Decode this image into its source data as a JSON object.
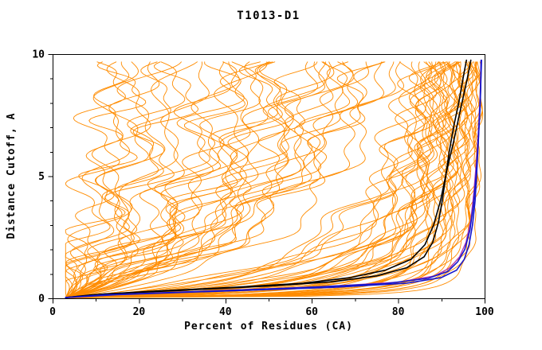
{
  "figure": {
    "title": "T1013-D1"
  },
  "chart_data": {
    "type": "line",
    "title": "T1013-D1",
    "xlabel": "Percent of Residues (CA)",
    "ylabel": "Distance Cutoff, A",
    "xlim": [
      0,
      100
    ],
    "ylim": [
      0,
      10
    ],
    "x_major_ticks": [
      0,
      20,
      40,
      60,
      80,
      100
    ],
    "x_minor_step": 10,
    "y_major_ticks": [
      0,
      5,
      10
    ],
    "y_minor_step": 1,
    "grid": false,
    "frame": true,
    "legend": "none",
    "colors": {
      "background_series": "#ff8c00",
      "highlight_black": "#000000",
      "highlight_blue": "#1616cd",
      "highlight_magenta": "#b43cb4",
      "axis": "#000000"
    },
    "curve_model": "x(y) = 3 + (F-3) * (y/(y+c)) * ((10+c)/10) + wiggle(amp,phase,freq); params = [F,c,amp,phase,freq]",
    "param_format": [
      "final_percent_at_cutoff10",
      "shape_c",
      "wiggle_amp",
      "wiggle_phase",
      "wiggle_freq"
    ],
    "y_sample_range": [
      0.08,
      9.76
    ],
    "series_groups": [
      {
        "name": "server-models-orange",
        "color": "#ff8c00",
        "width": 0.9,
        "params": [
          [
            13,
            9,
            3,
            0.5,
            1.1
          ],
          [
            16,
            7,
            2.5,
            2.1,
            0.9
          ],
          [
            18,
            11,
            3.2,
            4.0,
            1.3
          ],
          [
            21,
            6,
            2.8,
            1.2,
            1.0
          ],
          [
            24,
            8,
            3.5,
            3.3,
            0.8
          ],
          [
            26,
            5,
            2.2,
            0.2,
            1.2
          ],
          [
            28,
            10,
            3.0,
            2.6,
            1.0
          ],
          [
            30,
            7,
            2.6,
            5.1,
            0.7
          ],
          [
            32,
            12,
            3.4,
            1.8,
            1.1
          ],
          [
            34,
            6,
            2.4,
            3.9,
            0.9
          ],
          [
            15,
            8,
            2.0,
            2.9,
            1.2
          ],
          [
            20,
            9,
            3.1,
            0.8,
            0.85
          ],
          [
            38,
            5,
            3,
            1.5,
            1.0
          ],
          [
            40,
            3.5,
            2.5,
            2.8,
            0.9
          ],
          [
            43,
            6,
            3.2,
            0.4,
            1.15
          ],
          [
            45,
            2.5,
            2.8,
            3.6,
            0.8
          ],
          [
            47,
            7,
            3.0,
            1.9,
            1.05
          ],
          [
            50,
            4,
            2.2,
            5.0,
            0.95
          ],
          [
            52,
            6.5,
            3.3,
            2.2,
            1.1
          ],
          [
            54,
            3,
            2.6,
            0.9,
            0.85
          ],
          [
            56,
            5.5,
            3.1,
            4.2,
            1.0
          ],
          [
            58,
            2.2,
            2.4,
            1.4,
            1.2
          ],
          [
            60,
            4.5,
            3.0,
            3.0,
            0.9
          ],
          [
            62,
            6,
            2.7,
            0.6,
            1.05
          ],
          [
            64,
            3.2,
            2.3,
            2.4,
            1.0
          ],
          [
            66,
            5,
            3.2,
            4.6,
            0.8
          ],
          [
            68,
            2.8,
            2.5,
            1.1,
            1.1
          ],
          [
            70,
            4.2,
            2.9,
            3.8,
            0.95
          ],
          [
            72,
            6.2,
            2.1,
            0.3,
            1.0
          ],
          [
            74,
            3.6,
            2.7,
            2.0,
            1.15
          ],
          [
            76,
            5.8,
            3.0,
            4.9,
            0.85
          ],
          [
            78,
            2.4,
            2.2,
            1.6,
            1.0
          ],
          [
            80,
            4.8,
            2.8,
            3.4,
            0.9
          ],
          [
            42,
            8,
            3.4,
            2.5,
            1.0
          ],
          [
            48,
            7.5,
            3.1,
            0.7,
            0.9
          ],
          [
            55,
            8.5,
            2.9,
            3.2,
            1.05
          ],
          [
            63,
            7.8,
            2.6,
            1.3,
            0.95
          ],
          [
            71,
            7,
            2.4,
            4.4,
            1.0
          ],
          [
            77,
            6.8,
            2.0,
            2.7,
            1.1
          ],
          [
            59,
            9,
            3.3,
            5.3,
            0.8
          ],
          [
            84,
            0.9,
            2.0,
            1.0,
            1.0
          ],
          [
            85,
            0.5,
            1.8,
            2.2,
            0.9
          ],
          [
            86,
            1.3,
            2.2,
            3.5,
            1.1
          ],
          [
            87,
            0.35,
            1.6,
            0.6,
            1.0
          ],
          [
            88,
            0.8,
            1.9,
            2.9,
            0.85
          ],
          [
            88,
            0.18,
            1.2,
            4.1,
            1.05
          ],
          [
            89,
            0.55,
            1.7,
            1.8,
            0.95
          ],
          [
            90,
            1.1,
            2.0,
            3.1,
            1.0
          ],
          [
            90,
            0.14,
            1.0,
            0.4,
            1.1
          ],
          [
            91,
            0.3,
            1.4,
            2.5,
            0.9
          ],
          [
            91,
            0.7,
            1.8,
            4.7,
            1.0
          ],
          [
            92,
            0.16,
            1.1,
            1.5,
            1.05
          ],
          [
            92,
            0.45,
            1.5,
            3.7,
            0.95
          ],
          [
            93,
            0.12,
            0.9,
            0.9,
            1.0
          ],
          [
            93,
            0.28,
            1.3,
            2.8,
            1.1
          ],
          [
            94,
            0.6,
            1.6,
            4.3,
            0.9
          ],
          [
            94,
            0.1,
            0.8,
            1.7,
            1.0
          ],
          [
            95,
            0.2,
            1.0,
            3.3,
            1.05
          ],
          [
            95,
            0.4,
            1.3,
            0.5,
            0.95
          ],
          [
            96,
            0.13,
            0.8,
            2.3,
            1.0
          ],
          [
            96,
            0.3,
            1.1,
            4.5,
            1.1
          ],
          [
            97,
            0.09,
            0.7,
            1.2,
            0.9
          ],
          [
            97,
            0.22,
            0.9,
            3.0,
            1.0
          ],
          [
            98,
            0.08,
            0.6,
            2.6,
            1.05
          ],
          [
            98,
            0.15,
            0.8,
            0.8,
            0.95
          ],
          [
            99,
            0.1,
            0.5,
            4.0,
            1.0
          ],
          [
            99,
            0.06,
            0.4,
            1.9,
            1.1
          ],
          [
            85,
            1.6,
            2.4,
            5.2,
            0.9
          ],
          [
            87,
            1.2,
            2.1,
            2.1,
            1.0
          ],
          [
            89,
            1.8,
            2.3,
            3.9,
            1.05
          ],
          [
            91,
            1.4,
            1.9,
            0.2,
            0.95
          ],
          [
            93,
            1.0,
            1.7,
            5.0,
            1.0
          ],
          [
            95,
            0.85,
            1.5,
            1.4,
            1.1
          ],
          [
            96,
            0.6,
            1.2,
            3.6,
            0.9
          ],
          [
            97,
            0.5,
            1.0,
            0.3,
            1.0
          ],
          [
            98,
            0.35,
            0.9,
            2.0,
            1.05
          ],
          [
            86,
            0.25,
            1.3,
            4.8,
            0.95
          ],
          [
            88,
            0.4,
            1.4,
            1.05,
            1.0
          ],
          [
            90,
            0.5,
            1.5,
            3.15,
            1.1
          ],
          [
            92,
            0.65,
            1.6,
            0.65,
            0.9
          ],
          [
            94,
            0.3,
            1.2,
            2.45,
            1.0
          ],
          [
            96,
            0.2,
            0.9,
            4.25,
            1.05
          ],
          [
            98,
            0.12,
            0.7,
            1.55,
            0.95
          ],
          [
            99,
            0.16,
            0.5,
            3.45,
            1.0
          ]
        ]
      },
      {
        "name": "highlight-magenta",
        "color": "#b43cb4",
        "width": 1.4,
        "points": [
          [
            [
              3,
              0.03
            ],
            [
              13,
              0.15
            ],
            [
              36,
              0.3
            ],
            [
              62,
              0.47
            ],
            [
              80,
              0.66
            ],
            [
              88.5,
              0.92
            ],
            [
              92,
              1.25
            ],
            [
              94.2,
              1.7
            ],
            [
              95.7,
              2.3
            ],
            [
              96.8,
              3.2
            ],
            [
              97.5,
              4.3
            ],
            [
              98.1,
              5.6
            ],
            [
              98.6,
              7.0
            ],
            [
              99,
              8.5
            ],
            [
              99.15,
              9.75
            ]
          ]
        ]
      },
      {
        "name": "highlight-black",
        "color": "#000000",
        "width": 1.6,
        "points": [
          [
            [
              3,
              0.03
            ],
            [
              12,
              0.18
            ],
            [
              30,
              0.33
            ],
            [
              50,
              0.5
            ],
            [
              65,
              0.68
            ],
            [
              75,
              0.92
            ],
            [
              82,
              1.25
            ],
            [
              86,
              1.7
            ],
            [
              88,
              2.3
            ],
            [
              89.3,
              3.1
            ],
            [
              90.2,
              4.0
            ],
            [
              91,
              5.0
            ],
            [
              91.8,
              6.0
            ],
            [
              92.8,
              7.0
            ],
            [
              94,
              8.0
            ],
            [
              95,
              9.0
            ],
            [
              95.8,
              9.75
            ]
          ],
          [
            [
              3,
              0.03
            ],
            [
              9,
              0.14
            ],
            [
              22,
              0.28
            ],
            [
              42,
              0.45
            ],
            [
              58,
              0.62
            ],
            [
              69,
              0.85
            ],
            [
              77,
              1.15
            ],
            [
              83,
              1.6
            ],
            [
              86.2,
              2.2
            ],
            [
              88.2,
              3.0
            ],
            [
              89.8,
              4.0
            ],
            [
              91.2,
              5.2
            ],
            [
              92.8,
              6.4
            ],
            [
              94.5,
              7.8
            ],
            [
              96,
              9.0
            ],
            [
              96.8,
              9.75
            ]
          ]
        ]
      },
      {
        "name": "highlight-blue",
        "color": "#1616cd",
        "width": 1.6,
        "points": [
          [
            [
              3,
              0.03
            ],
            [
              12,
              0.14
            ],
            [
              34,
              0.28
            ],
            [
              58,
              0.44
            ],
            [
              77,
              0.6
            ],
            [
              87,
              0.82
            ],
            [
              91.5,
              1.1
            ],
            [
              93.8,
              1.5
            ],
            [
              95.4,
              2.0
            ],
            [
              96.6,
              2.8
            ],
            [
              97.4,
              3.8
            ],
            [
              98,
              5.0
            ],
            [
              98.5,
              6.4
            ],
            [
              99,
              8.0
            ],
            [
              99.2,
              9.75
            ]
          ],
          [
            [
              3,
              0.03
            ],
            [
              15,
              0.15
            ],
            [
              40,
              0.3
            ],
            [
              65,
              0.45
            ],
            [
              82,
              0.62
            ],
            [
              90,
              0.85
            ],
            [
              93.5,
              1.15
            ],
            [
              95.3,
              1.6
            ],
            [
              96.4,
              2.2
            ],
            [
              97.2,
              3.0
            ],
            [
              97.8,
              4.0
            ],
            [
              98.2,
              5.2
            ],
            [
              98.6,
              6.6
            ],
            [
              99,
              8.2
            ],
            [
              99.3,
              9.75
            ]
          ]
        ]
      }
    ]
  }
}
